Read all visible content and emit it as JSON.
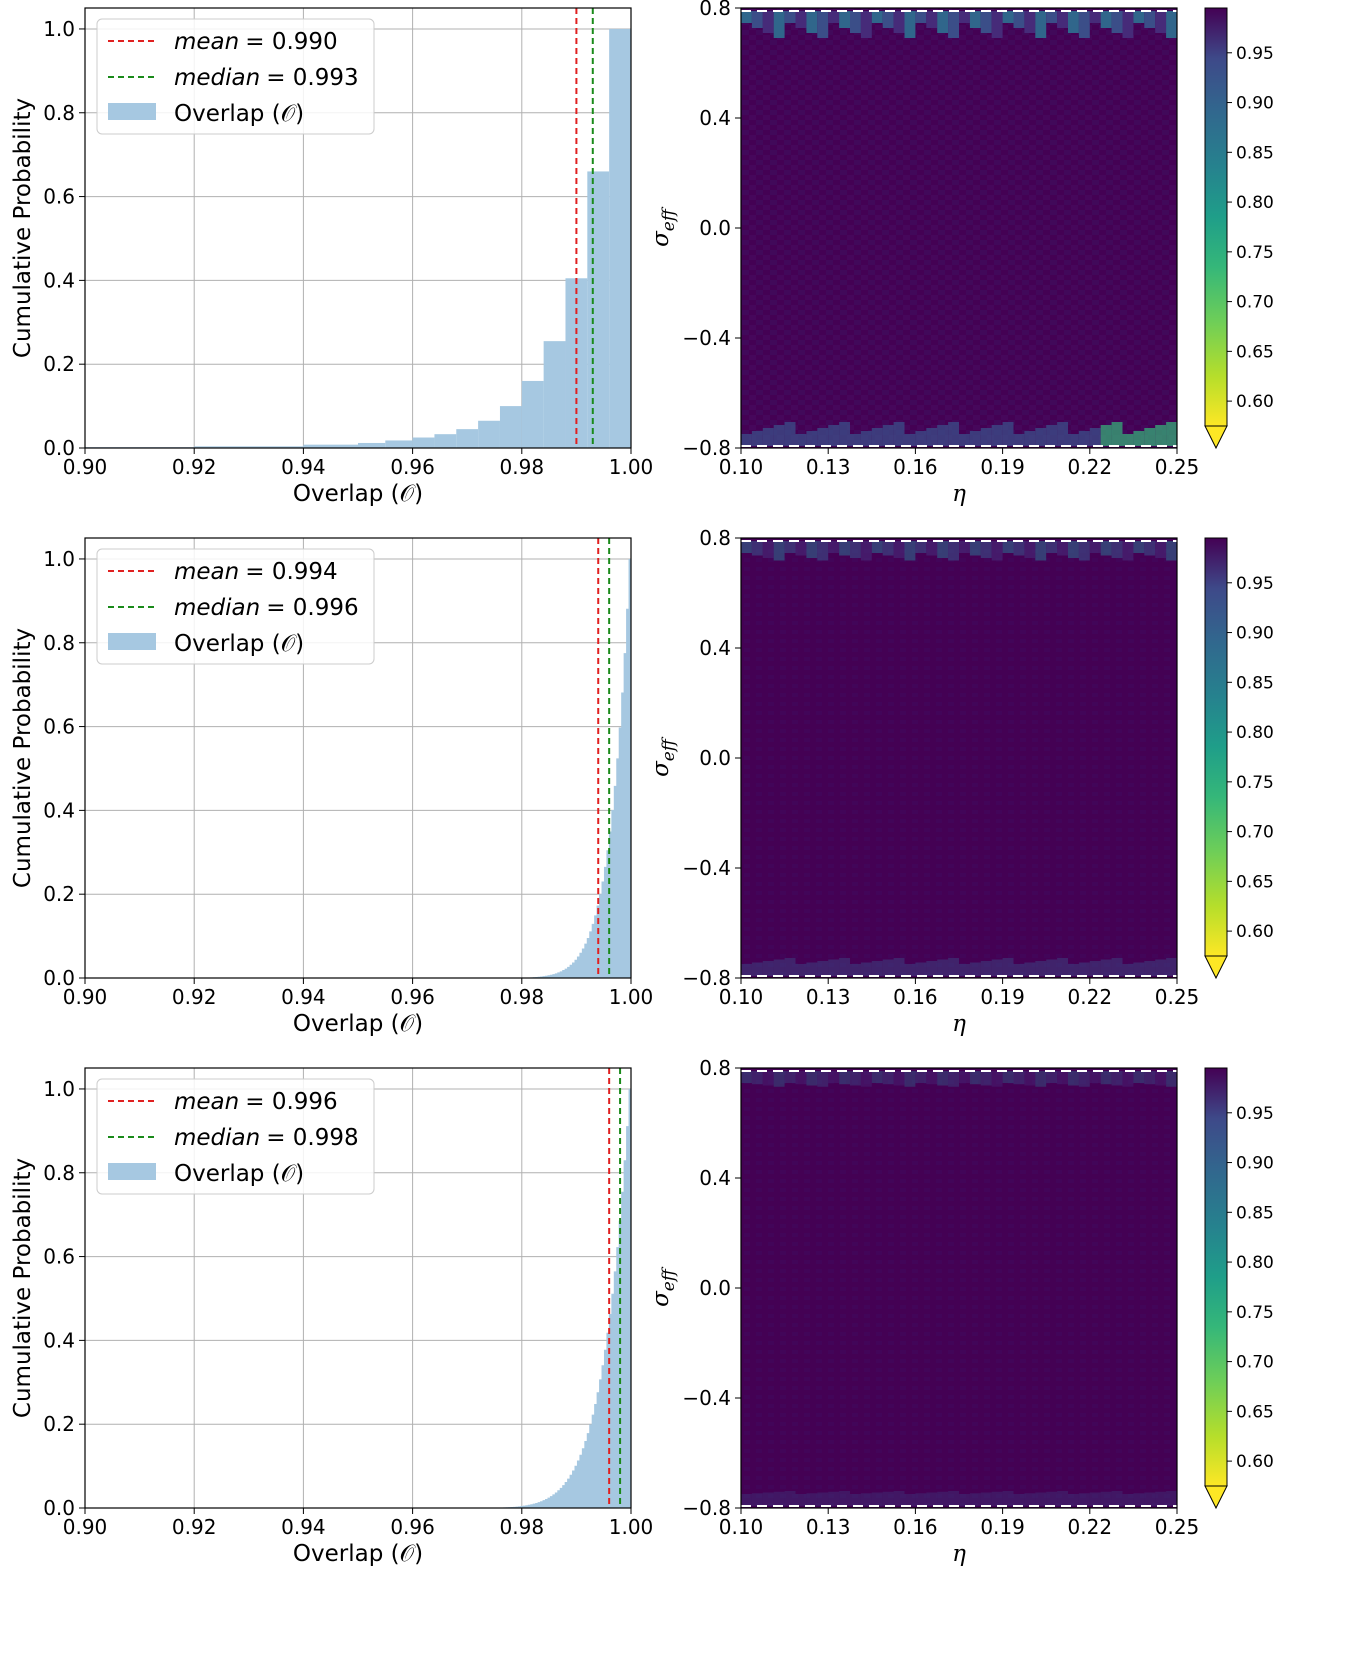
{
  "colors": {
    "hist_fill": "#a6c8e1",
    "mean_line": "#e02020",
    "median_line": "#1a8a1a",
    "grid": "#b0b0b0",
    "heat_base": "#440154",
    "heat_alt": "#3f0f60"
  },
  "chart_data": [
    {
      "type": "bar",
      "row": 0,
      "xlabel": "Overlap (𝒪)",
      "ylabel": "Cumulative Probability",
      "xlim": [
        0.9,
        1.0
      ],
      "ylim": [
        0,
        1.05
      ],
      "xticks": [
        "0.90",
        "0.92",
        "0.94",
        "0.96",
        "0.98",
        "1.00"
      ],
      "yticks": [
        "0.0",
        "0.2",
        "0.4",
        "0.6",
        "0.8",
        "1.0"
      ],
      "grid": true,
      "legend_position": "upper-left",
      "legend": {
        "mean_label": "mean",
        "mean_value": "= 0.990",
        "median_label": "median",
        "median_value": "= 0.993",
        "hist_label": "Overlap (𝒪)"
      },
      "mean": 0.99,
      "median": 0.993,
      "bin_edges": [
        0.9,
        0.92,
        0.94,
        0.95,
        0.955,
        0.96,
        0.964,
        0.968,
        0.972,
        0.976,
        0.98,
        0.984,
        0.988,
        0.992,
        0.996,
        1.0
      ],
      "values": [
        0.002,
        0.004,
        0.008,
        0.012,
        0.018,
        0.025,
        0.033,
        0.045,
        0.065,
        0.1,
        0.16,
        0.255,
        0.405,
        0.66,
        1.0
      ]
    },
    {
      "type": "heatmap",
      "row": 0,
      "xlabel": "η",
      "ylabel_main": "σ",
      "ylabel_sub": "eff",
      "xlim": [
        0.1,
        0.25
      ],
      "ylim": [
        -0.8,
        0.8
      ],
      "xticks": [
        "0.10",
        "0.13",
        "0.16",
        "0.19",
        "0.22",
        "0.25"
      ],
      "yticks": [
        "0.8",
        "0.4",
        "0.0",
        "−0.4",
        "−0.8"
      ],
      "colorbar_ticks": [
        "0.95",
        "0.90",
        "0.85",
        "0.80",
        "0.75",
        "0.70",
        "0.65",
        "0.60"
      ],
      "colorbar_range": [
        0.575,
        0.995
      ],
      "colormap": "viridis_r",
      "description_level": "high overlap ~0.99 almost everywhere, lower values near edges"
    },
    {
      "type": "bar",
      "row": 1,
      "xlabel": "Overlap (𝒪)",
      "ylabel": "Cumulative Probability",
      "xlim": [
        0.9,
        1.0
      ],
      "ylim": [
        0,
        1.05
      ],
      "xticks": [
        "0.90",
        "0.92",
        "0.94",
        "0.96",
        "0.98",
        "1.00"
      ],
      "yticks": [
        "0.0",
        "0.2",
        "0.4",
        "0.6",
        "0.8",
        "1.0"
      ],
      "grid": true,
      "legend_position": "upper-left",
      "legend": {
        "mean_label": "mean",
        "mean_value": "= 0.994",
        "median_label": "median",
        "median_value": "= 0.996",
        "hist_label": "Overlap (𝒪)"
      },
      "mean": 0.994,
      "median": 0.996,
      "cdf_shape": 3.0,
      "bins": 100
    },
    {
      "type": "heatmap",
      "row": 1,
      "xlabel": "η",
      "ylabel_main": "σ",
      "ylabel_sub": "eff",
      "xlim": [
        0.1,
        0.25
      ],
      "ylim": [
        -0.8,
        0.8
      ],
      "xticks": [
        "0.10",
        "0.13",
        "0.16",
        "0.19",
        "0.22",
        "0.25"
      ],
      "yticks": [
        "0.8",
        "0.4",
        "0.0",
        "−0.4",
        "−0.8"
      ],
      "colorbar_ticks": [
        "0.95",
        "0.90",
        "0.85",
        "0.80",
        "0.75",
        "0.70",
        "0.65",
        "0.60"
      ],
      "colorbar_range": [
        0.575,
        0.995
      ],
      "colormap": "viridis_r"
    },
    {
      "type": "bar",
      "row": 2,
      "xlabel": "Overlap (𝒪)",
      "ylabel": "Cumulative Probability",
      "xlim": [
        0.9,
        1.0
      ],
      "ylim": [
        0,
        1.05
      ],
      "xticks": [
        "0.90",
        "0.92",
        "0.94",
        "0.96",
        "0.98",
        "1.00"
      ],
      "yticks": [
        "0.0",
        "0.2",
        "0.4",
        "0.6",
        "0.8",
        "1.0"
      ],
      "grid": true,
      "legend_position": "upper-left",
      "legend": {
        "mean_label": "mean",
        "mean_value": "= 0.996",
        "median_label": "median",
        "median_value": "= 0.998",
        "hist_label": "Overlap (𝒪)"
      },
      "mean": 0.996,
      "median": 0.998,
      "cdf_shape": 2.2,
      "bins": 100
    },
    {
      "type": "heatmap",
      "row": 2,
      "xlabel": "η",
      "ylabel_main": "σ",
      "ylabel_sub": "eff",
      "xlim": [
        0.1,
        0.25
      ],
      "ylim": [
        -0.8,
        0.8
      ],
      "xticks": [
        "0.10",
        "0.13",
        "0.16",
        "0.19",
        "0.22",
        "0.25"
      ],
      "yticks": [
        "0.8",
        "0.4",
        "0.0",
        "−0.4",
        "−0.8"
      ],
      "colorbar_ticks": [
        "0.95",
        "0.90",
        "0.85",
        "0.80",
        "0.75",
        "0.70",
        "0.65",
        "0.60"
      ],
      "colorbar_range": [
        0.575,
        0.995
      ],
      "colormap": "viridis_r"
    }
  ]
}
